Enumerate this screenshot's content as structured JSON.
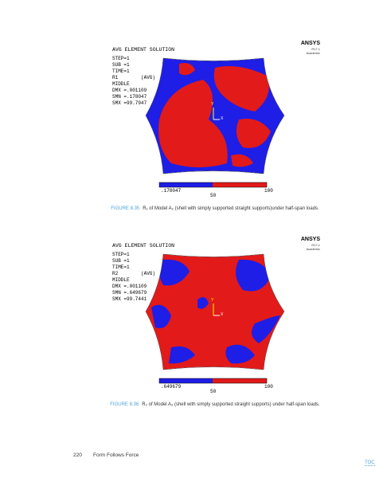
{
  "figures": [
    {
      "ansys": "ANSYS",
      "version": "R17.1",
      "edition": "Academic",
      "heading": "AVG ELEMENT SOLUTION",
      "info": [
        "STEP=1",
        "SUB =1",
        "TIME=1",
        "R1        (AVG)",
        "MIDDLE",
        "DMX =.001109",
        "SMN =.178047",
        "SMX =99.7947"
      ],
      "axes": [
        "Y",
        "X"
      ],
      "legend": [
        ".178047",
        "50",
        "100"
      ],
      "caption_label": "FIGURE 8.35",
      "caption": "R₁ of Model A₂ (shell with simply supported straight supports)under half-span loads."
    },
    {
      "ansys": "ANSYS",
      "version": "R17.1",
      "edition": "Academic",
      "heading": "AVG ELEMENT SOLUTION",
      "info": [
        "STEP=1",
        "SUB =1",
        "TIME=1",
        "R2        (AVG)",
        "MIDDLE",
        "DMX =.001109",
        "SMN =.649679",
        "SMX =99.7441"
      ],
      "axes": [
        "Y",
        "X"
      ],
      "legend": [
        ".649679",
        "50",
        "100"
      ],
      "caption_label": "FIGURE 8.36",
      "caption": "R₂ of Model A₂ (shell with simply supported straight supports) under half-span loads."
    }
  ],
  "footer": {
    "page": "220",
    "book": "Form Follows Force",
    "toc": "TOC"
  }
}
